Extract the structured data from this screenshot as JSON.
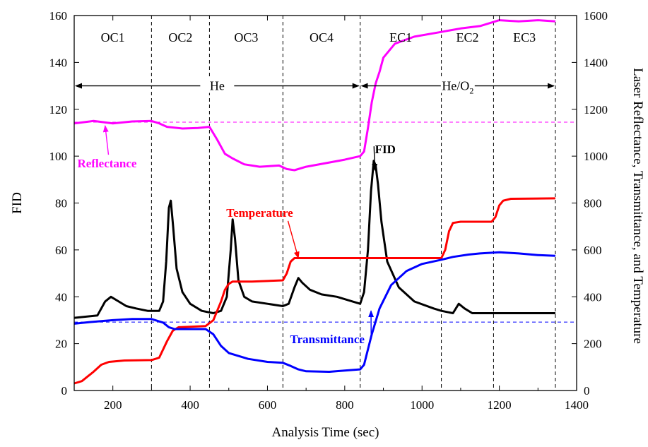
{
  "chart_data": {
    "type": "line",
    "title": "",
    "xlabel": "Analysis Time (sec)",
    "ylabel_left": "FID",
    "ylabel_right": "Laser Reflectance, Transmittance, and Temperature",
    "xlim": [
      100,
      1400
    ],
    "ylim_left": [
      0,
      160
    ],
    "ylim_right": [
      0,
      1600
    ],
    "x_ticks": [
      "200",
      "400",
      "600",
      "800",
      "1000",
      "1200",
      "1400"
    ],
    "y_left_ticks": [
      "0",
      "20",
      "40",
      "60",
      "80",
      "100",
      "120",
      "140",
      "160"
    ],
    "y_right_ticks": [
      "0",
      "200",
      "400",
      "600",
      "800",
      "1000",
      "1200",
      "1400",
      "1600"
    ],
    "grid": false,
    "fractions": [
      {
        "label": "OC1",
        "start": 100,
        "end": 300
      },
      {
        "label": "OC2",
        "start": 300,
        "end": 450
      },
      {
        "label": "OC3",
        "start": 450,
        "end": 640
      },
      {
        "label": "OC4",
        "start": 640,
        "end": 840
      },
      {
        "label": "EC1",
        "start": 840,
        "end": 1050
      },
      {
        "label": "EC2",
        "start": 1050,
        "end": 1185
      },
      {
        "label": "EC3",
        "start": 1185,
        "end": 1345
      }
    ],
    "atmospheres": [
      {
        "label": "He",
        "subscript": "",
        "start": 100,
        "end": 840,
        "y": 130
      },
      {
        "label": "He/O",
        "subscript": "2",
        "start": 840,
        "end": 1345,
        "y": 130
      }
    ],
    "reference_lines": [
      {
        "name": "Reflectance baseline",
        "axis": "right",
        "value": 1145,
        "color": "#ff00ff"
      },
      {
        "name": "Transmittance baseline",
        "axis": "right",
        "value": 292,
        "color": "#0000ff"
      }
    ],
    "series": [
      {
        "name": "FID",
        "axis": "left",
        "color": "#000000",
        "x": [
          100,
          160,
          180,
          195,
          215,
          235,
          260,
          290,
          320,
          330,
          338,
          345,
          350,
          356,
          365,
          380,
          400,
          430,
          460,
          480,
          495,
          505,
          510,
          516,
          525,
          540,
          560,
          600,
          640,
          655,
          670,
          680,
          690,
          710,
          740,
          780,
          820,
          840,
          850,
          860,
          868,
          875,
          880,
          886,
          895,
          910,
          940,
          980,
          1030,
          1050,
          1080,
          1095,
          1110,
          1130,
          1180,
          1250,
          1345
        ],
        "y": [
          31,
          32,
          38,
          40,
          38,
          36,
          35,
          34,
          34,
          38,
          55,
          78,
          81,
          70,
          52,
          42,
          37,
          34,
          33,
          34,
          40,
          60,
          73,
          65,
          47,
          40,
          38,
          37,
          36,
          37,
          44,
          48,
          46,
          43,
          41,
          40,
          38,
          37,
          42,
          60,
          85,
          98,
          96,
          88,
          72,
          55,
          44,
          38,
          35,
          34,
          33,
          37,
          35,
          33,
          33,
          33,
          33
        ]
      },
      {
        "name": "Reflectance",
        "axis": "right",
        "color": "#ff00ff",
        "x": [
          100,
          150,
          200,
          250,
          300,
          320,
          340,
          380,
          420,
          450,
          470,
          490,
          510,
          540,
          580,
          630,
          650,
          670,
          700,
          750,
          800,
          840,
          850,
          860,
          870,
          880,
          890,
          900,
          930,
          980,
          1050,
          1100,
          1150,
          1200,
          1250,
          1300,
          1345
        ],
        "y": [
          1140,
          1150,
          1140,
          1148,
          1150,
          1140,
          1125,
          1118,
          1120,
          1125,
          1070,
          1010,
          990,
          965,
          955,
          960,
          945,
          940,
          955,
          970,
          985,
          1000,
          1020,
          1120,
          1230,
          1310,
          1360,
          1420,
          1480,
          1510,
          1530,
          1545,
          1555,
          1580,
          1575,
          1580,
          1575
        ]
      },
      {
        "name": "Temperature",
        "axis": "right",
        "color": "#ff0000",
        "x": [
          100,
          120,
          150,
          170,
          190,
          230,
          300,
          320,
          340,
          355,
          370,
          440,
          460,
          480,
          490,
          500,
          510,
          560,
          640,
          650,
          660,
          670,
          750,
          850,
          1050,
          1060,
          1070,
          1080,
          1100,
          1180,
          1190,
          1200,
          1210,
          1230,
          1345
        ],
        "y": [
          30,
          40,
          80,
          110,
          122,
          128,
          130,
          140,
          210,
          255,
          270,
          275,
          300,
          380,
          430,
          455,
          465,
          465,
          470,
          500,
          550,
          565,
          565,
          565,
          565,
          600,
          680,
          715,
          720,
          720,
          740,
          790,
          810,
          818,
          820
        ]
      },
      {
        "name": "Transmittance",
        "axis": "right",
        "color": "#0000ff",
        "x": [
          100,
          140,
          200,
          250,
          300,
          330,
          345,
          360,
          400,
          440,
          460,
          480,
          500,
          550,
          600,
          640,
          660,
          680,
          700,
          760,
          800,
          840,
          850,
          870,
          890,
          920,
          960,
          1000,
          1050,
          1080,
          1120,
          1150,
          1200,
          1250,
          1300,
          1345
        ],
        "y": [
          285,
          292,
          300,
          305,
          305,
          290,
          270,
          262,
          262,
          262,
          240,
          190,
          160,
          135,
          122,
          118,
          105,
          90,
          82,
          80,
          85,
          90,
          110,
          240,
          350,
          450,
          510,
          540,
          558,
          570,
          580,
          585,
          590,
          585,
          578,
          575
        ]
      }
    ],
    "annotations": [
      {
        "text": "Reflectance",
        "color": "#ff00ff",
        "label_x": 185,
        "label_y_left": 97,
        "arrow_x": 180,
        "arrow_y_left": 113
      },
      {
        "text": "FID",
        "color": "#000000",
        "label_x": 905,
        "label_y_left": 103,
        "arrow_x": 878,
        "arrow_y_left": 94
      },
      {
        "text": "Temperature",
        "color": "#ff0000",
        "label_x": 580,
        "label_y_left": 76,
        "arrow_x": 680,
        "arrow_y_left": 56.5
      },
      {
        "text": "Transmittance",
        "color": "#0000ff",
        "label_x": 755,
        "label_y_left": 22,
        "arrow_x": 868,
        "arrow_y_left": 34
      }
    ]
  }
}
